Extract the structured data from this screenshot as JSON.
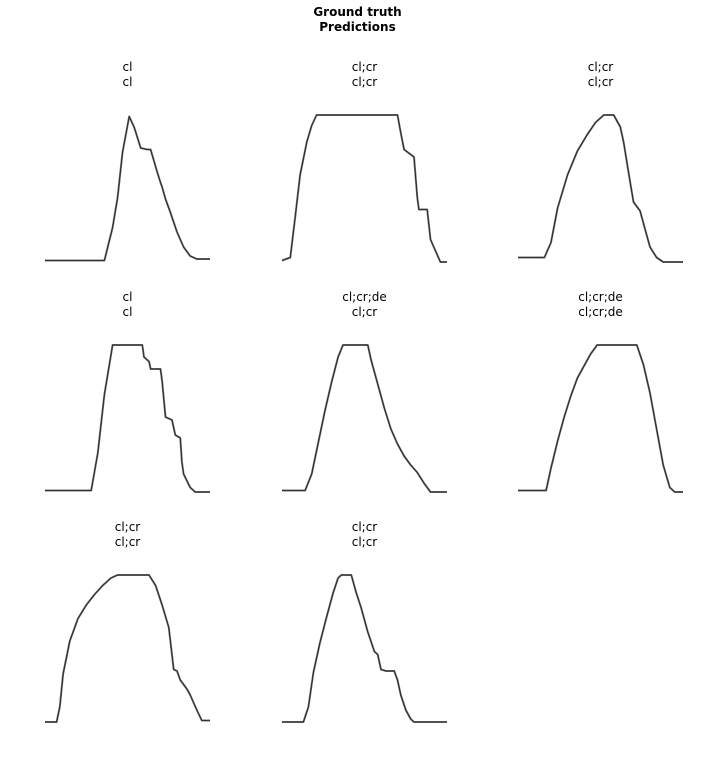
{
  "figure_title": {
    "line1": "Ground truth",
    "line2": "Predictions"
  },
  "chart_data": [
    {
      "type": "line",
      "ground_truth": "cl",
      "prediction": "cl",
      "ylim": [
        0,
        1
      ],
      "x": [
        0,
        0.36,
        0.41,
        0.44,
        0.47,
        0.51,
        0.54,
        0.58,
        0.62,
        0.64,
        0.68,
        0.7,
        0.71,
        0.73,
        0.76,
        0.8,
        0.84,
        0.88,
        0.92,
        0.96,
        1.0
      ],
      "y": [
        0.03,
        0.03,
        0.25,
        0.45,
        0.75,
        0.99,
        0.92,
        0.78,
        0.77,
        0.77,
        0.62,
        0.55,
        0.52,
        0.44,
        0.35,
        0.22,
        0.12,
        0.06,
        0.04,
        0.04,
        0.04
      ]
    },
    {
      "type": "line",
      "ground_truth": "cl;cr",
      "prediction": "cl;cr",
      "ylim": [
        0,
        1
      ],
      "x": [
        0,
        0.05,
        0.08,
        0.11,
        0.15,
        0.18,
        0.21,
        0.7,
        0.72,
        0.74,
        0.8,
        0.82,
        0.83,
        0.88,
        0.9,
        0.92,
        0.96,
        1.0
      ],
      "y": [
        0.03,
        0.05,
        0.32,
        0.6,
        0.82,
        0.93,
        1.0,
        1.0,
        0.88,
        0.77,
        0.72,
        0.45,
        0.37,
        0.37,
        0.17,
        0.12,
        0.02,
        0.02
      ],
      "flat_top": [
        0.21,
        0.7
      ]
    },
    {
      "type": "line",
      "ground_truth": "cl;cr",
      "prediction": "cl;cr",
      "ylim": [
        0,
        1
      ],
      "x": [
        0,
        0.16,
        0.2,
        0.24,
        0.3,
        0.36,
        0.42,
        0.47,
        0.52,
        0.58,
        0.62,
        0.64,
        0.68,
        0.7,
        0.74,
        0.77,
        0.8,
        0.84,
        0.88,
        0.92,
        1.0
      ],
      "y": [
        0.05,
        0.05,
        0.15,
        0.38,
        0.6,
        0.76,
        0.87,
        0.95,
        1.0,
        1.0,
        0.92,
        0.82,
        0.55,
        0.42,
        0.36,
        0.24,
        0.12,
        0.05,
        0.02,
        0.02,
        0.02
      ],
      "flat_top": [
        0.47,
        0.58
      ]
    },
    {
      "type": "line",
      "ground_truth": "cl",
      "prediction": "cl",
      "ylim": [
        0,
        1
      ],
      "x": [
        0,
        0.28,
        0.32,
        0.36,
        0.39,
        0.41,
        0.59,
        0.6,
        0.63,
        0.64,
        0.7,
        0.71,
        0.73,
        0.77,
        0.79,
        0.82,
        0.83,
        0.84,
        0.88,
        0.91,
        1.0
      ],
      "y": [
        0.03,
        0.03,
        0.28,
        0.67,
        0.87,
        1.0,
        1.0,
        0.92,
        0.89,
        0.84,
        0.84,
        0.76,
        0.52,
        0.5,
        0.4,
        0.38,
        0.22,
        0.14,
        0.05,
        0.02,
        0.02
      ],
      "flat_top": [
        0.41,
        0.59
      ]
    },
    {
      "type": "line",
      "ground_truth": "cl;cr;de",
      "prediction": "cl;cr",
      "ylim": [
        0,
        1
      ],
      "x": [
        0,
        0.14,
        0.18,
        0.22,
        0.26,
        0.3,
        0.34,
        0.37,
        0.4,
        0.52,
        0.54,
        0.58,
        0.62,
        0.66,
        0.7,
        0.74,
        0.78,
        0.82,
        0.86,
        0.9,
        1.0
      ],
      "y": [
        0.03,
        0.03,
        0.14,
        0.35,
        0.56,
        0.75,
        0.92,
        1.0,
        1.0,
        1.0,
        0.9,
        0.74,
        0.58,
        0.44,
        0.34,
        0.26,
        0.2,
        0.15,
        0.08,
        0.02,
        0.02
      ],
      "flat_top": [
        0.37,
        0.52
      ]
    },
    {
      "type": "line",
      "ground_truth": "cl;cr;de",
      "prediction": "cl;cr;de",
      "ylim": [
        0,
        1
      ],
      "x": [
        0,
        0.17,
        0.2,
        0.24,
        0.28,
        0.32,
        0.36,
        0.4,
        0.44,
        0.48,
        0.72,
        0.76,
        0.8,
        0.84,
        0.88,
        0.92,
        0.95,
        1.0
      ],
      "y": [
        0.03,
        0.03,
        0.18,
        0.36,
        0.52,
        0.66,
        0.78,
        0.86,
        0.94,
        1.0,
        1.0,
        0.87,
        0.68,
        0.44,
        0.2,
        0.05,
        0.02,
        0.02
      ],
      "flat_top": [
        0.48,
        0.72
      ]
    },
    {
      "type": "line",
      "ground_truth": "cl;cr",
      "prediction": "cl;cr",
      "ylim": [
        0,
        1
      ],
      "x": [
        0,
        0.07,
        0.09,
        0.11,
        0.15,
        0.2,
        0.25,
        0.3,
        0.35,
        0.4,
        0.44,
        0.63,
        0.67,
        0.71,
        0.75,
        0.78,
        0.8,
        0.82,
        0.86,
        0.88,
        0.9,
        0.92,
        0.95,
        1.0
      ],
      "y": [
        0.02,
        0.02,
        0.12,
        0.34,
        0.56,
        0.71,
        0.8,
        0.87,
        0.93,
        0.98,
        1.0,
        1.0,
        0.93,
        0.8,
        0.65,
        0.37,
        0.36,
        0.3,
        0.24,
        0.2,
        0.15,
        0.1,
        0.03,
        0.03
      ],
      "flat_top": [
        0.44,
        0.63
      ]
    },
    {
      "type": "line",
      "ground_truth": "cl;cr",
      "prediction": "cl;cr",
      "ylim": [
        0,
        1
      ],
      "x": [
        0,
        0.13,
        0.16,
        0.19,
        0.23,
        0.27,
        0.31,
        0.34,
        0.36,
        0.42,
        0.45,
        0.48,
        0.52,
        0.56,
        0.58,
        0.6,
        0.63,
        0.68,
        0.7,
        0.72,
        0.75,
        0.78,
        0.8,
        1.0
      ],
      "y": [
        0.02,
        0.02,
        0.12,
        0.35,
        0.55,
        0.72,
        0.88,
        0.98,
        1.0,
        1.0,
        0.88,
        0.78,
        0.62,
        0.49,
        0.47,
        0.37,
        0.36,
        0.36,
        0.3,
        0.2,
        0.1,
        0.04,
        0.02,
        0.02
      ],
      "flat_top": [
        0.36,
        0.42
      ]
    }
  ]
}
